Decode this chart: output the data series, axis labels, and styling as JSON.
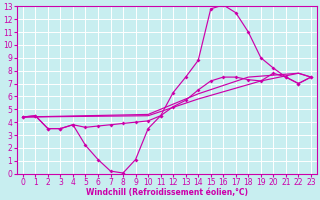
{
  "xlabel": "Windchill (Refroidissement éolien,°C)",
  "xlim": [
    -0.5,
    23.5
  ],
  "ylim": [
    0,
    13
  ],
  "xticks": [
    0,
    1,
    2,
    3,
    4,
    5,
    6,
    7,
    8,
    9,
    10,
    11,
    12,
    13,
    14,
    15,
    16,
    17,
    18,
    19,
    20,
    21,
    22,
    23
  ],
  "yticks": [
    0,
    1,
    2,
    3,
    4,
    5,
    6,
    7,
    8,
    9,
    10,
    11,
    12,
    13
  ],
  "bg_color": "#c8eef0",
  "line_color": "#cc00aa",
  "grid_color": "#ffffff",
  "line1": {
    "x": [
      0,
      1,
      2,
      3,
      4,
      5,
      6,
      7,
      8,
      9,
      10,
      11,
      12,
      13,
      14,
      15,
      16,
      17,
      18,
      19,
      20,
      21,
      22,
      23
    ],
    "y": [
      4.4,
      4.5,
      3.5,
      3.5,
      3.8,
      2.2,
      1.1,
      0.2,
      0.05,
      1.1,
      3.5,
      4.5,
      6.3,
      7.5,
      8.8,
      12.8,
      13.1,
      12.5,
      11.0,
      9.0,
      8.2,
      7.5,
      7.0,
      7.5
    ]
  },
  "line2": {
    "x": [
      0,
      10,
      14,
      19,
      22,
      23
    ],
    "y": [
      4.4,
      4.5,
      5.8,
      7.2,
      7.8,
      7.5
    ]
  },
  "line3": {
    "x": [
      0,
      10,
      14,
      18,
      22,
      23
    ],
    "y": [
      4.4,
      4.6,
      6.2,
      7.5,
      7.8,
      7.5
    ]
  },
  "line4": {
    "x": [
      0,
      1,
      2,
      3,
      4,
      5,
      6,
      7,
      8,
      9,
      10,
      11,
      12,
      13,
      14,
      15,
      16,
      17,
      18,
      19,
      20,
      21,
      22,
      23
    ],
    "y": [
      4.4,
      4.5,
      3.5,
      3.5,
      3.8,
      3.6,
      3.7,
      3.8,
      3.9,
      4.0,
      4.1,
      4.5,
      5.2,
      5.7,
      6.5,
      7.2,
      7.5,
      7.5,
      7.3,
      7.2,
      7.8,
      7.5,
      7.0,
      7.5
    ]
  }
}
